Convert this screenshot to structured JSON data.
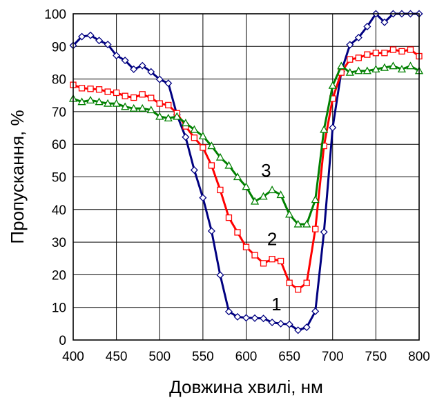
{
  "chart_data": {
    "type": "line",
    "title": "",
    "xlabel": "Довжина хвилі, нм",
    "ylabel": "Пропускання, %",
    "xlim": [
      400,
      800
    ],
    "ylim": [
      0,
      100
    ],
    "xticks": [
      400,
      450,
      500,
      550,
      600,
      650,
      700,
      750,
      800
    ],
    "yticks": [
      0,
      10,
      20,
      30,
      40,
      50,
      60,
      70,
      80,
      90,
      100
    ],
    "grid": true,
    "legend": "none",
    "series": [
      {
        "name": "1",
        "color": "#000080",
        "marker": "diamond",
        "label_at": [
          635,
          11
        ],
        "x": [
          400,
          410,
          420,
          430,
          440,
          450,
          460,
          470,
          480,
          490,
          500,
          510,
          520,
          530,
          540,
          550,
          560,
          570,
          580,
          590,
          600,
          610,
          620,
          630,
          640,
          650,
          660,
          670,
          680,
          690,
          700,
          710,
          720,
          730,
          740,
          750,
          760,
          770,
          780,
          790,
          800
        ],
        "y": [
          90.3,
          93.0,
          93.4,
          91.8,
          90.6,
          87.2,
          85.7,
          83.0,
          84.1,
          82.2,
          79.9,
          78.7,
          69.0,
          62.2,
          52.1,
          43.6,
          33.4,
          19.9,
          8.7,
          7.1,
          6.8,
          6.7,
          6.6,
          5.4,
          5.0,
          4.8,
          3.0,
          3.9,
          8.8,
          33.1,
          65.1,
          82.3,
          90.5,
          92.7,
          96.1,
          100.0,
          97.4,
          100.0,
          100.0,
          100.0,
          100.0
        ]
      },
      {
        "name": "2",
        "color": "#ff0000",
        "marker": "square",
        "label_at": [
          630,
          31
        ],
        "x": [
          400,
          410,
          420,
          430,
          440,
          450,
          460,
          470,
          480,
          490,
          500,
          510,
          520,
          530,
          540,
          550,
          560,
          570,
          580,
          590,
          600,
          610,
          620,
          630,
          640,
          650,
          660,
          670,
          680,
          690,
          700,
          710,
          720,
          730,
          740,
          750,
          760,
          770,
          780,
          790,
          800
        ],
        "y": [
          78.2,
          77.2,
          77.0,
          76.8,
          76.1,
          75.8,
          74.8,
          74.3,
          75.3,
          74.2,
          72.5,
          72.0,
          69.5,
          65.5,
          62.0,
          59.0,
          53.5,
          46.0,
          37.5,
          33.0,
          28.5,
          26.0,
          23.5,
          24.8,
          24.2,
          17.5,
          15.5,
          17.5,
          34.0,
          59.5,
          74.0,
          82.0,
          86.0,
          86.5,
          87.5,
          88.0,
          88.0,
          89.0,
          88.5,
          89.0,
          87.0
        ]
      },
      {
        "name": "3",
        "color": "#008000",
        "marker": "triangle",
        "label_at": [
          623,
          52
        ],
        "x": [
          400,
          410,
          420,
          430,
          440,
          450,
          460,
          470,
          480,
          490,
          500,
          510,
          520,
          530,
          540,
          550,
          560,
          570,
          580,
          590,
          600,
          610,
          620,
          630,
          640,
          650,
          660,
          670,
          680,
          690,
          700,
          710,
          720,
          730,
          740,
          750,
          760,
          770,
          780,
          790,
          800
        ],
        "y": [
          74.0,
          73.0,
          73.5,
          73.0,
          72.5,
          72.5,
          71.5,
          71.0,
          71.0,
          70.5,
          68.5,
          68.0,
          68.5,
          66.5,
          64.5,
          62.5,
          59.5,
          56.0,
          53.5,
          50.0,
          47.0,
          42.5,
          44.0,
          46.0,
          44.5,
          38.5,
          35.5,
          35.5,
          43.0,
          64.5,
          78.0,
          84.0,
          82.0,
          82.5,
          82.5,
          83.0,
          83.5,
          84.0,
          83.0,
          84.0,
          82.5
        ]
      }
    ]
  }
}
